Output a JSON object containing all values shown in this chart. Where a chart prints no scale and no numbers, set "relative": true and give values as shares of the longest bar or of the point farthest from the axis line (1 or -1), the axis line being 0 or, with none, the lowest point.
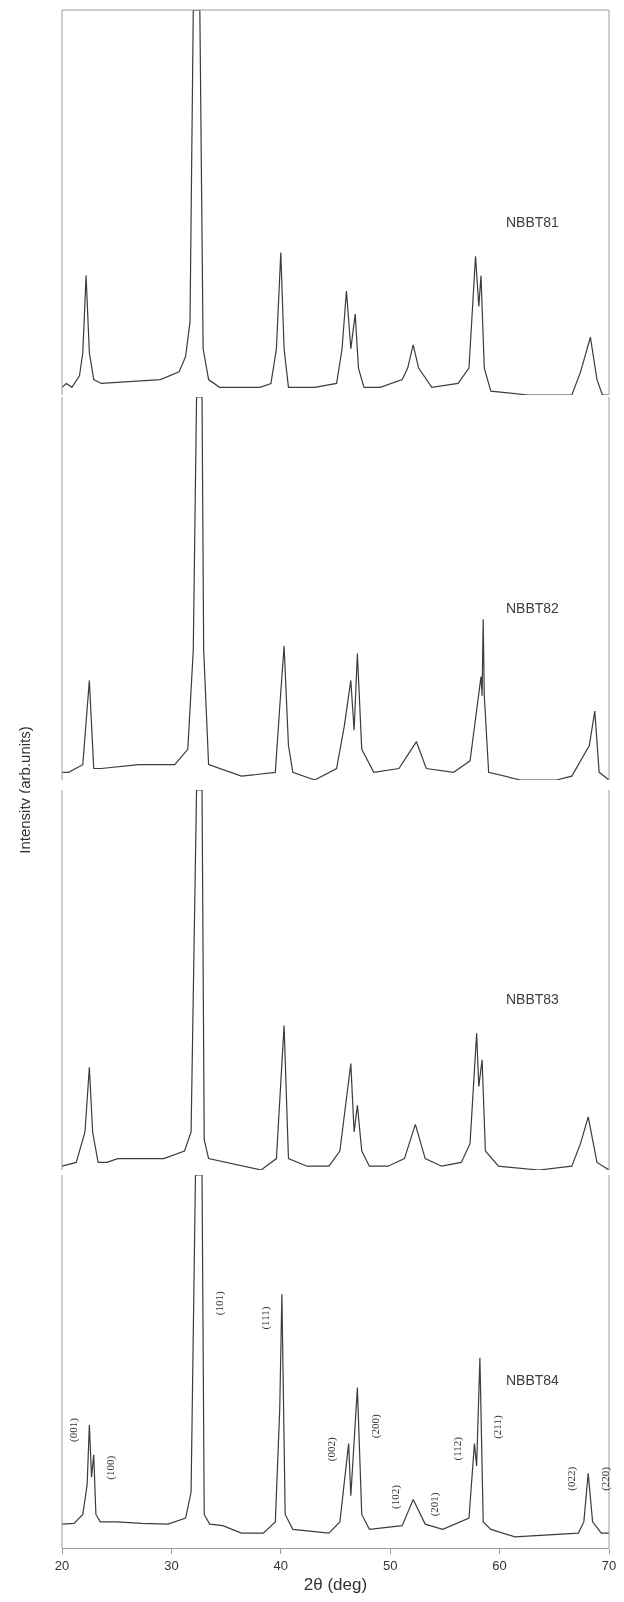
{
  "chart_data": [
    {
      "type": "line",
      "relative": true,
      "xlim": [
        20,
        70
      ],
      "tick_labels": false,
      "series": [
        {
          "name": "NBBT81",
          "color": "#3c3c3c",
          "x": [
            20,
            20.4,
            20.9,
            21.6,
            21.9,
            22.2,
            22.5,
            22.9,
            23.6,
            29,
            30.7,
            31.3,
            31.7,
            32,
            32.6,
            32.9,
            33.4,
            34.4,
            36.4,
            38.1,
            39.1,
            39.6,
            40,
            40.3,
            40.7,
            41.7,
            43.1,
            45.1,
            45.6,
            46,
            46.4,
            46.8,
            47.1,
            47.6,
            49.1,
            51.1,
            51.6,
            52.1,
            52.6,
            53.8,
            56.2,
            57.2,
            57.8,
            58.1,
            58.3,
            58.6,
            59.2,
            62.6,
            66.6,
            67.4,
            68.3,
            68.9,
            69.4,
            70
          ],
          "values": [
            0.02,
            0.03,
            0.02,
            0.05,
            0.11,
            0.31,
            0.11,
            0.04,
            0.03,
            0.04,
            0.06,
            0.1,
            0.19,
            1,
            1,
            0.12,
            0.04,
            0.02,
            0.02,
            0.02,
            0.03,
            0.12,
            0.37,
            0.12,
            0.02,
            0.02,
            0.02,
            0.03,
            0.12,
            0.27,
            0.12,
            0.21,
            0.07,
            0.02,
            0.02,
            0.04,
            0.07,
            0.13,
            0.07,
            0.02,
            0.03,
            0.07,
            0.36,
            0.23,
            0.31,
            0.07,
            0.01,
            0,
            0,
            0.06,
            0.15,
            0.04,
            0,
            0
          ]
        }
      ]
    },
    {
      "type": "line",
      "relative": true,
      "xlim": [
        20,
        70
      ],
      "tick_labels": false,
      "ylabel": "Intensity (arb.units)",
      "series": [
        {
          "name": "NBBT82",
          "color": "#3c3c3c",
          "x": [
            20,
            20.6,
            21.9,
            22.5,
            22.9,
            23.6,
            27,
            30.3,
            31.5,
            32,
            32.3,
            32.8,
            32.95,
            33.4,
            36.4,
            39.5,
            39.9,
            40.3,
            40.7,
            41.1,
            43.1,
            45.1,
            45.8,
            46.4,
            46.7,
            47,
            47.4,
            48.5,
            50.8,
            52.4,
            53.3,
            55.8,
            57.3,
            58.3,
            58.4,
            58.5,
            58.6,
            59,
            61.9,
            65.2,
            66.6,
            68.2,
            68.7,
            69.1,
            70
          ],
          "values": [
            0.02,
            0.02,
            0.04,
            0.26,
            0.03,
            0.03,
            0.04,
            0.04,
            0.08,
            0.34,
            1,
            1,
            0.34,
            0.04,
            0.01,
            0.02,
            0.19,
            0.35,
            0.09,
            0.02,
            0,
            0.03,
            0.14,
            0.26,
            0.13,
            0.33,
            0.08,
            0.02,
            0.03,
            0.1,
            0.03,
            0.02,
            0.05,
            0.27,
            0.22,
            0.42,
            0.22,
            0.02,
            0,
            0,
            0.01,
            0.09,
            0.18,
            0.02,
            0
          ]
        }
      ]
    },
    {
      "type": "line",
      "relative": true,
      "xlim": [
        20,
        70
      ],
      "tick_labels": false,
      "series": [
        {
          "name": "NBBT83",
          "color": "#3c3c3c",
          "x": [
            20,
            21.3,
            22.1,
            22.5,
            22.8,
            23.3,
            24.1,
            25.1,
            29.3,
            31.2,
            31.8,
            32.3,
            32.8,
            33,
            33.4,
            38.2,
            39.6,
            40.3,
            40.7,
            42.4,
            44.4,
            45.4,
            46.4,
            46.7,
            47,
            47.4,
            48.1,
            49.8,
            51.3,
            52.3,
            53.2,
            54.7,
            56.5,
            57.3,
            57.9,
            58.1,
            58.4,
            58.7,
            59.9,
            63.6,
            66.6,
            67.4,
            68.1,
            68.9,
            70
          ],
          "values": [
            0.01,
            0.02,
            0.1,
            0.27,
            0.1,
            0.02,
            0.02,
            0.03,
            0.03,
            0.05,
            0.1,
            1,
            1,
            0.08,
            0.03,
            0,
            0.03,
            0.38,
            0.03,
            0.01,
            0.01,
            0.05,
            0.28,
            0.1,
            0.17,
            0.05,
            0.01,
            0.01,
            0.03,
            0.12,
            0.03,
            0.01,
            0.02,
            0.07,
            0.36,
            0.22,
            0.29,
            0.05,
            0.01,
            0,
            0.01,
            0.07,
            0.14,
            0.02,
            0
          ]
        }
      ]
    },
    {
      "type": "line",
      "relative": true,
      "xlim": [
        20,
        70
      ],
      "xticks": [
        20,
        30,
        40,
        50,
        60,
        70
      ],
      "tick_labels": "x",
      "xlabel": "2θ (deg)",
      "series": [
        {
          "name": "NBBT84",
          "color": "#3c3c3c",
          "x": [
            20,
            21.1,
            21.9,
            22.3,
            22.5,
            22.7,
            22.9,
            23.1,
            23.5,
            25,
            27.3,
            29.7,
            31.3,
            31.8,
            32.2,
            32.8,
            33,
            33.5,
            34.7,
            36.4,
            38.4,
            39.5,
            39.9,
            40.1,
            40.4,
            41.1,
            44.4,
            45.4,
            46.2,
            46.4,
            47,
            47.4,
            48.1,
            51.1,
            52.1,
            53.2,
            54.8,
            57.2,
            57.7,
            57.9,
            58.2,
            58.5,
            59.2,
            61.4,
            67.2,
            67.7,
            68.1,
            68.5,
            69.3,
            70
          ],
          "values": [
            0.064,
            0.066,
            0.09,
            0.17,
            0.33,
            0.19,
            0.25,
            0.09,
            0.07,
            0.07,
            0.066,
            0.064,
            0.08,
            0.15,
            1,
            1,
            0.09,
            0.064,
            0.06,
            0.04,
            0.04,
            0.07,
            0.37,
            0.68,
            0.09,
            0.05,
            0.04,
            0.07,
            0.28,
            0.14,
            0.43,
            0.09,
            0.05,
            0.06,
            0.13,
            0.064,
            0.05,
            0.08,
            0.28,
            0.22,
            0.51,
            0.07,
            0.05,
            0.03,
            0.04,
            0.07,
            0.2,
            0.07,
            0.04,
            0.04
          ]
        }
      ],
      "annotations": [
        {
          "text": "(001)",
          "x": 22.46,
          "y": 0.3
        },
        {
          "text": "(100)",
          "x": 22.96,
          "y": 0.2
        },
        {
          "text": "(101)",
          "x": 32.88,
          "y": 0.64
        },
        {
          "text": "(111)",
          "x": 40.05,
          "y": 0.6
        },
        {
          "text": "(002)",
          "x": 46.09,
          "y": 0.25
        },
        {
          "text": "(200)",
          "x": 47.14,
          "y": 0.31
        },
        {
          "text": "(102)",
          "x": 51.96,
          "y": 0.12
        },
        {
          "text": "(201)",
          "x": 52.6,
          "y": 0.1
        },
        {
          "text": "(112)",
          "x": 57.63,
          "y": 0.25
        },
        {
          "text": "(211)",
          "x": 58.34,
          "y": 0.31
        },
        {
          "text": "(022)",
          "x": 68.0,
          "y": 0.17
        },
        {
          "text": "(220)",
          "x": 68.19,
          "y": 0.17
        }
      ]
    }
  ]
}
